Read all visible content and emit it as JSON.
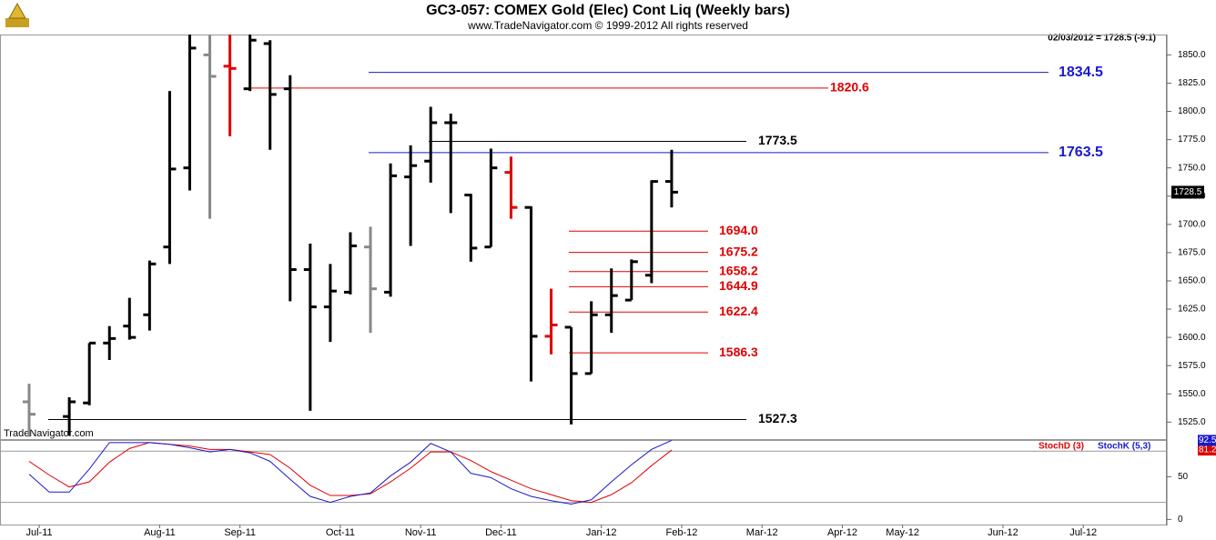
{
  "chart_data": {
    "type": "ohlc",
    "title": "GC3-057:  COMEX Gold (Elec) Cont Liq  (Weekly bars)",
    "subtitle": "www.TradeNavigator.com © 1999-2012 All rights reserved",
    "info": "02/03/2012 = 1728.5 (-9.1)",
    "watermark": "TradeNavigator.com",
    "categories": [
      null,
      "Jul-11",
      null,
      null,
      null,
      null,
      null,
      "Aug-11",
      null,
      null,
      null,
      "Sep-11",
      null,
      null,
      null,
      null,
      "Oct-11",
      null,
      null,
      null,
      "Nov-11",
      null,
      null,
      null,
      "Dec-11",
      null,
      null,
      null,
      null,
      "Jan-12",
      null,
      null,
      null,
      "Feb-12",
      null,
      null,
      null,
      "Mar-12",
      null,
      null,
      null,
      "Apr-12",
      null,
      null,
      "May-12",
      null,
      null,
      null,
      null,
      "Jun-12",
      null,
      null,
      null,
      "Jul-12"
    ],
    "open": [
      1543,
      null,
      1530,
      1542,
      1595,
      1610,
      1620,
      1680,
      1750,
      1850,
      1840,
      1820,
      1860,
      1820,
      1660,
      1627,
      1640,
      1680,
      1640,
      1742,
      1756,
      1790,
      1726,
      1680,
      1746,
      1715,
      1601,
      1609,
      1568,
      1620,
      1633,
      1655,
      1738,
      null,
      null,
      null,
      null,
      null,
      null,
      null,
      null,
      null,
      null,
      null,
      null,
      null,
      null,
      null,
      null,
      null,
      null,
      null,
      null,
      null
    ],
    "high": [
      1559,
      null,
      1547,
      1595,
      1610,
      1635,
      1668,
      1818,
      1868,
      1868,
      1868,
      1868,
      1863,
      1832,
      1683,
      1665,
      1693,
      1698,
      1754,
      1770,
      1804,
      1798,
      1727,
      1767,
      1760,
      1716,
      1643,
      1609,
      1632,
      1661,
      1669,
      1739,
      1766,
      null,
      null,
      null,
      null,
      null,
      null,
      null,
      null,
      null,
      null,
      null,
      null,
      null,
      null,
      null,
      null,
      null,
      null,
      null,
      null,
      null
    ],
    "low": [
      1512,
      null,
      1513,
      1540,
      1580,
      1598,
      1606,
      1665,
      1730,
      1705,
      1778,
      1818,
      1766,
      1632,
      1535,
      1596,
      1638,
      1604,
      1636,
      1681,
      1737,
      1710,
      1667,
      1680,
      1705,
      1561,
      1585,
      1523,
      1568,
      1604,
      1633,
      1648,
      1715,
      null,
      null,
      null,
      null,
      null,
      null,
      null,
      null,
      null,
      null,
      null,
      null,
      null,
      null,
      null,
      null,
      null,
      null,
      null,
      null,
      null
    ],
    "close": [
      1532,
      null,
      1543,
      1595,
      1599,
      1600,
      1665,
      1749,
      1856,
      1831,
      1838,
      1863,
      1815,
      1660,
      1627,
      1641,
      1681,
      1643,
      1743,
      1752,
      1790,
      1790,
      1679,
      1750,
      1715,
      1601,
      1611,
      1568,
      1620,
      1637,
      1667,
      1738,
      1728.5,
      null,
      null,
      null,
      null,
      null,
      null,
      null,
      null,
      null,
      null,
      null,
      null,
      null,
      null,
      null,
      null,
      null,
      null,
      null,
      null,
      null
    ],
    "bar_colors": [
      "#888888",
      null,
      "#000000",
      "#000000",
      "#000000",
      "#000000",
      "#000000",
      "#000000",
      "#000000",
      "#888888",
      "#e00000",
      "#000000",
      "#000000",
      "#000000",
      "#000000",
      "#000000",
      "#000000",
      "#888888",
      "#000000",
      "#000000",
      "#000000",
      "#000000",
      "#000000",
      "#000000",
      "#e00000",
      "#000000",
      "#e00000",
      "#000000",
      "#000000",
      "#000000",
      "#000000",
      "#000000",
      "#000000",
      null,
      null,
      null,
      null,
      null,
      null,
      null,
      null,
      null,
      null,
      null,
      null,
      null,
      null,
      null,
      null,
      null,
      null,
      null,
      null,
      null
    ],
    "ylim": [
      1510,
      1868
    ],
    "yticks": [
      {
        "value": 1525,
        "label": "1525.0"
      },
      {
        "value": 1550,
        "label": "1550.0"
      },
      {
        "value": 1575,
        "label": "1575.0"
      },
      {
        "value": 1600,
        "label": "1600.0"
      },
      {
        "value": 1625,
        "label": "1625.0"
      },
      {
        "value": 1650,
        "label": "1650.0"
      },
      {
        "value": 1675,
        "label": "1675.0"
      },
      {
        "value": 1700,
        "label": "1700.0"
      },
      {
        "value": 1725,
        "label": "1725.0"
      },
      {
        "value": 1750,
        "label": "1750.0"
      },
      {
        "value": 1775,
        "label": "1775.0"
      },
      {
        "value": 1800,
        "label": "1800.0"
      },
      {
        "value": 1825,
        "label": "1825.0"
      },
      {
        "value": 1850,
        "label": "1850.0"
      }
    ],
    "levels": [
      {
        "value": 1834.5,
        "label": "1834.5",
        "color": "#1a1acc"
      },
      {
        "value": 1820.6,
        "label": "1820.6",
        "color": "#e00000"
      },
      {
        "value": 1773.5,
        "label": "1773.5",
        "color": "#000000"
      },
      {
        "value": 1763.5,
        "label": "1763.5",
        "color": "#1a1acc"
      },
      {
        "value": 1694.0,
        "label": "1694.0",
        "color": "#e00000"
      },
      {
        "value": 1675.2,
        "label": "1675.2",
        "color": "#e00000"
      },
      {
        "value": 1658.2,
        "label": "1658.2",
        "color": "#e00000"
      },
      {
        "value": 1644.9,
        "label": "1644.9",
        "color": "#e00000"
      },
      {
        "value": 1622.4,
        "label": "1622.4",
        "color": "#e00000"
      },
      {
        "value": 1586.3,
        "label": "1586.3",
        "color": "#e00000"
      },
      {
        "value": 1527.3,
        "label": "1527.3",
        "color": "#000000"
      }
    ],
    "stoch": {
      "ylim": [
        -6,
        93
      ],
      "yticks": [
        0,
        50
      ],
      "guides": [
        20,
        80
      ],
      "series": [
        {
          "name": "StochD (3)",
          "color": "#e00000",
          "values": [
            68,
            52,
            38,
            44,
            67,
            83,
            90,
            88,
            86,
            82,
            82,
            79,
            76,
            60,
            40,
            28,
            28,
            30,
            44,
            60,
            79,
            79,
            69,
            56,
            46,
            36,
            29,
            22,
            20,
            29,
            43,
            63,
            81.21,
            null,
            null,
            null,
            null,
            null,
            null,
            null,
            null,
            null,
            null,
            null,
            null,
            null,
            null,
            null,
            null,
            null,
            null,
            null,
            null,
            null
          ]
        },
        {
          "name": "StochK (5,3)",
          "color": "#1a1acc",
          "values": [
            53,
            32,
            32,
            59,
            90,
            90,
            90,
            88,
            84,
            79,
            82,
            78,
            68,
            47,
            27,
            20,
            27,
            31,
            51,
            67,
            89,
            79,
            54,
            49,
            36,
            27,
            22,
            18,
            23,
            44,
            64,
            82,
            92.58,
            null,
            null,
            null,
            null,
            null,
            null,
            null,
            null,
            null,
            null,
            null,
            null,
            null,
            null,
            null,
            null,
            null,
            null,
            null,
            null,
            null
          ]
        }
      ]
    }
  }
}
